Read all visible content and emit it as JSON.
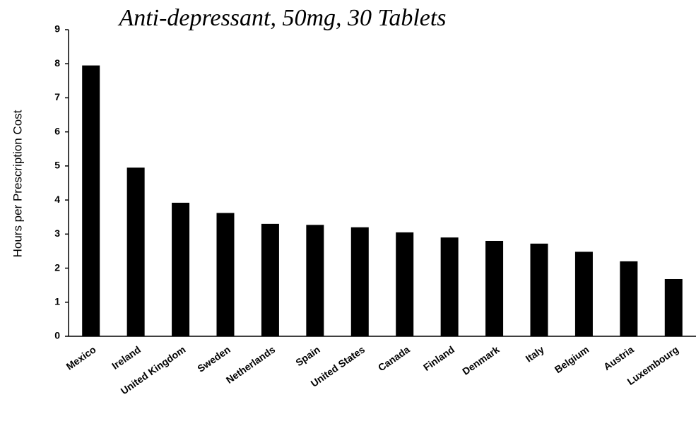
{
  "chart_data": {
    "type": "bar",
    "title": "Anti-depressant, 50mg, 30 Tablets",
    "y_label": "Hours per Prescription Cost",
    "categories": [
      "Mexico",
      "Ireland",
      "United Kingdom",
      "Sweden",
      "Netherlands",
      "Spain",
      "United States",
      "Canada",
      "Finland",
      "Denmark",
      "Italy",
      "Belgium",
      "Austria",
      "Luxembourg"
    ],
    "values": [
      7.95,
      4.95,
      3.92,
      3.62,
      3.3,
      3.27,
      3.2,
      3.05,
      2.9,
      2.8,
      2.72,
      2.48,
      2.2,
      1.68
    ],
    "color": "#000000",
    "ylim": [
      0,
      9
    ],
    "yticks": [
      0,
      1,
      2,
      3,
      4,
      5,
      6,
      7,
      8,
      9
    ],
    "grid": false
  }
}
